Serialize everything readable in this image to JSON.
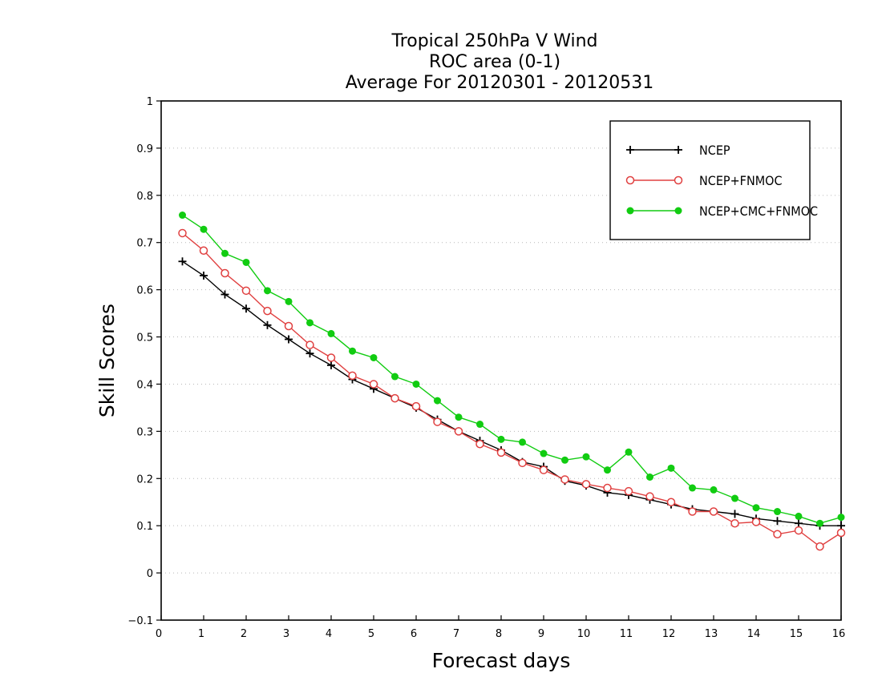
{
  "chart_data": {
    "type": "line",
    "title": [
      "Tropical 250hPa V Wind",
      "ROC area (0-1)",
      "Average For 20120301 - 20120531"
    ],
    "xlabel": "Forecast days",
    "ylabel": "Skill Scores",
    "xlim": [
      0,
      16
    ],
    "ylim": [
      -0.1,
      1
    ],
    "x_ticks": [
      0,
      1,
      2,
      3,
      4,
      5,
      6,
      7,
      8,
      9,
      10,
      11,
      12,
      13,
      14,
      15,
      16
    ],
    "y_ticks": [
      -0.1,
      0,
      0.1,
      0.2,
      0.3,
      0.4,
      0.5,
      0.6,
      0.7,
      0.8,
      0.9,
      1
    ],
    "x_tick_labels": [
      "0",
      "1",
      "2",
      "3",
      "4",
      "5",
      "6",
      "7",
      "8",
      "9",
      "10",
      "11",
      "12",
      "13",
      "14",
      "15",
      "16"
    ],
    "y_tick_labels": [
      "−0.1",
      "0",
      "0.1",
      "0.2",
      "0.3",
      "0.4",
      "0.5",
      "0.6",
      "0.7",
      "0.8",
      "0.9",
      "1"
    ],
    "grid": true,
    "legend_position": "top-right",
    "x": [
      0.5,
      1,
      1.5,
      2,
      2.5,
      3,
      3.5,
      4,
      4.5,
      5,
      5.5,
      6,
      6.5,
      7,
      7.5,
      8,
      8.5,
      9,
      9.5,
      10,
      10.5,
      11,
      11.5,
      12,
      12.5,
      13,
      13.5,
      14,
      14.5,
      15,
      15.5,
      16
    ],
    "series": [
      {
        "name": "NCEP",
        "color": "#000000",
        "marker": "plus",
        "values": [
          0.66,
          0.63,
          0.59,
          0.56,
          0.525,
          0.495,
          0.465,
          0.44,
          0.41,
          0.39,
          0.37,
          0.35,
          0.325,
          0.3,
          0.28,
          0.26,
          0.235,
          0.225,
          0.195,
          0.185,
          0.17,
          0.165,
          0.155,
          0.145,
          0.135,
          0.13,
          0.125,
          0.115,
          0.11,
          0.105,
          0.1,
          0.1
        ]
      },
      {
        "name": "NCEP+FNMOC",
        "color": "#e04040",
        "marker": "open-circle",
        "values": [
          0.72,
          0.683,
          0.635,
          0.598,
          0.555,
          0.523,
          0.483,
          0.456,
          0.418,
          0.4,
          0.37,
          0.353,
          0.32,
          0.3,
          0.273,
          0.255,
          0.233,
          0.218,
          0.198,
          0.188,
          0.18,
          0.173,
          0.162,
          0.15,
          0.13,
          0.13,
          0.105,
          0.108,
          0.082,
          0.09,
          0.056,
          0.085
        ]
      },
      {
        "name": "NCEP+CMC+FNMOC",
        "color": "#11cc11",
        "marker": "filled-circle",
        "values": [
          0.758,
          0.728,
          0.677,
          0.658,
          0.598,
          0.575,
          0.53,
          0.507,
          0.47,
          0.456,
          0.416,
          0.4,
          0.365,
          0.33,
          0.315,
          0.283,
          0.277,
          0.253,
          0.239,
          0.246,
          0.218,
          0.256,
          0.203,
          0.222,
          0.18,
          0.176,
          0.158,
          0.138,
          0.13,
          0.12,
          0.105,
          0.118
        ]
      }
    ]
  }
}
